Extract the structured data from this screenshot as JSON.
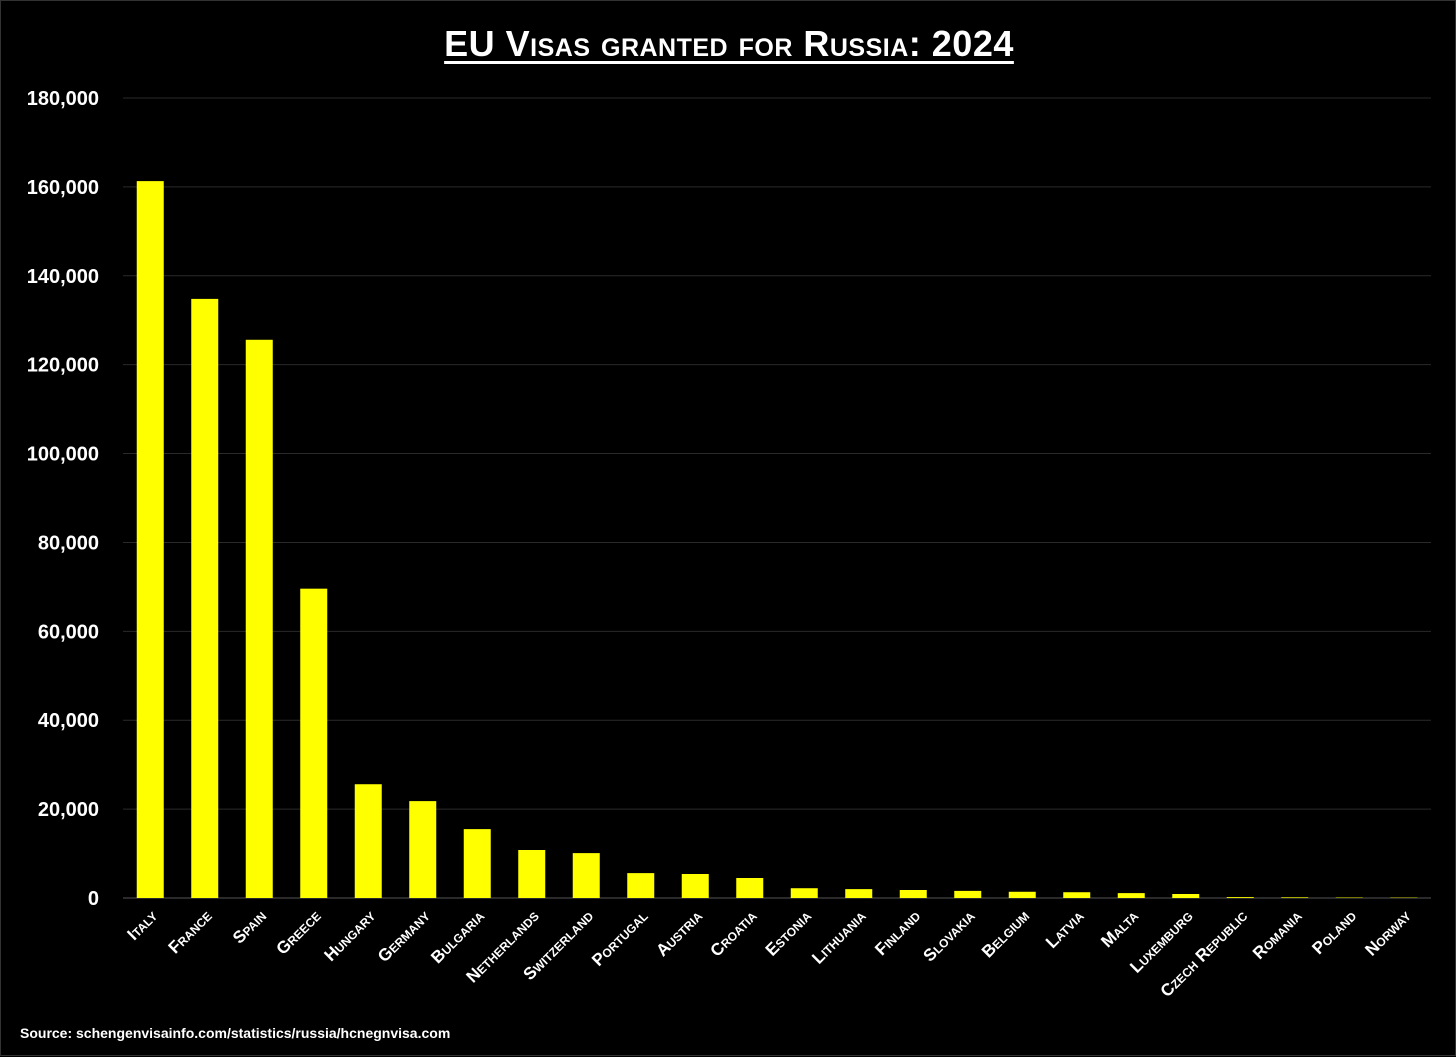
{
  "chart_data": {
    "type": "bar",
    "title": "EU Visas granted for Russia: 2024",
    "categories": [
      "Italy",
      "France",
      "Spain",
      "Greece",
      "Hungary",
      "Germany",
      "Bulgaria",
      "Netherlands",
      "Switzerland",
      "Portugal",
      "Austria",
      "Croatia",
      "Estonia",
      "Lithuania",
      "Finland",
      "Slovakia",
      "Belgium",
      "Latvia",
      "Malta",
      "Luxemburg",
      "Czech Republic",
      "Romania",
      "Poland",
      "Norway"
    ],
    "values": [
      161300,
      134800,
      125600,
      69600,
      25600,
      21800,
      15500,
      10800,
      10100,
      5600,
      5400,
      4500,
      2200,
      2000,
      1800,
      1600,
      1400,
      1300,
      1100,
      900,
      200,
      150,
      100,
      80
    ],
    "xlabel": "",
    "ylabel": "",
    "ylim": [
      0,
      180000
    ],
    "yticks": [
      0,
      20000,
      40000,
      60000,
      80000,
      100000,
      120000,
      140000,
      160000,
      180000
    ],
    "ytick_labels": [
      "0",
      "20,000",
      "40,000",
      "60,000",
      "80,000",
      "100,000",
      "120,000",
      "140,000",
      "160,000",
      "180,000"
    ],
    "grid": true,
    "legend": "none",
    "colors": {
      "bar": "#ffff00",
      "background": "#000000",
      "text": "#ffffff",
      "grid": "#2a2a2a"
    }
  },
  "source": "Source: schengenvisainfo.com/statistics/russia/hcnegnvisa.com"
}
